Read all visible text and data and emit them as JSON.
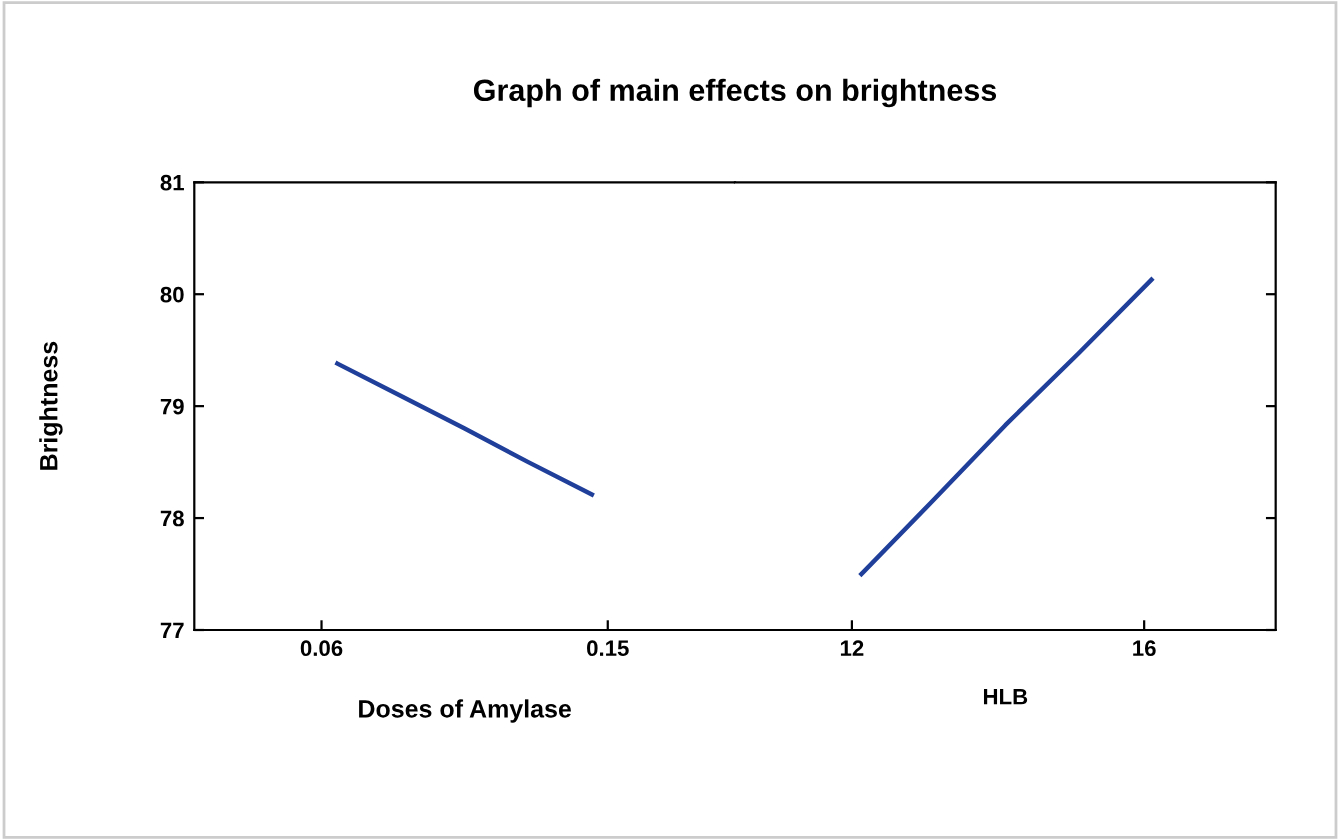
{
  "chart_data": [
    {
      "type": "line",
      "title": "Graph of main effects on brightness",
      "ylabel": "Brightness",
      "xlabel": "Doses of Amylase",
      "x": [
        0.065,
        0.085,
        0.105,
        0.125,
        0.145
      ],
      "series": [
        {
          "color": "#1f3f9a",
          "values": [
            79.38,
            79.09,
            78.8,
            78.5,
            78.21
          ]
        }
      ],
      "xlim": [
        0.02,
        0.19
      ],
      "xticks": [
        0.06,
        0.15
      ],
      "ylim": [
        77,
        81
      ],
      "yticks": [
        77,
        78,
        79,
        80,
        81
      ],
      "grid": false,
      "legend": false,
      "marker": "none",
      "line_style": "solid"
    },
    {
      "type": "line",
      "xlabel": "HLB",
      "x": [
        12.13,
        13.1,
        14.1,
        15.1,
        16.1
      ],
      "series": [
        {
          "color": "#1f3f9a",
          "values": [
            77.5,
            78.15,
            78.83,
            79.47,
            80.13
          ]
        }
      ],
      "xlim": [
        10.4,
        17.8
      ],
      "xticks": [
        12,
        16
      ],
      "ylim": [
        77,
        81
      ],
      "yticks": [
        77,
        78,
        79,
        80,
        81
      ],
      "tick_labels": "x",
      "grid": false,
      "legend": false,
      "marker": "none",
      "line_style": "solid"
    }
  ]
}
